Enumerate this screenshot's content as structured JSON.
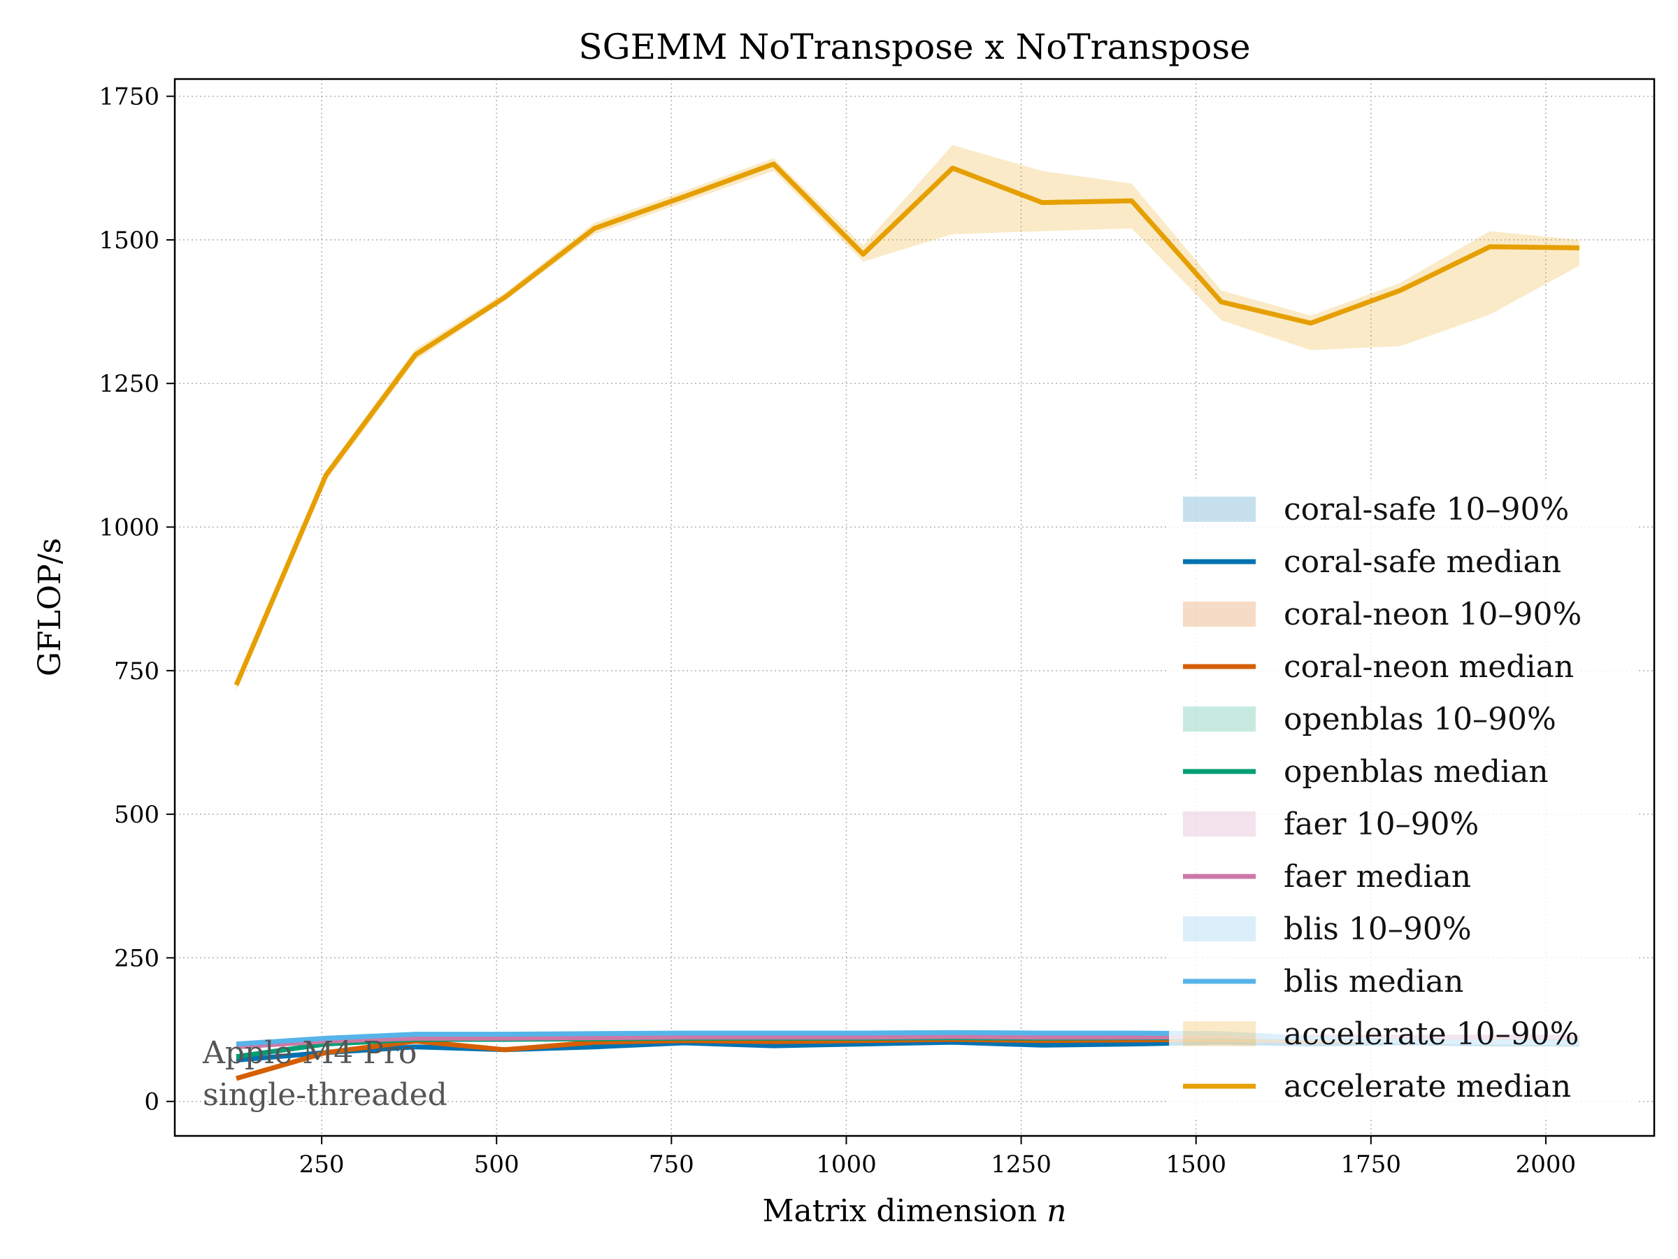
{
  "chart_data": {
    "type": "line",
    "title": "SGEMM  NoTranspose x NoTranspose",
    "xlabel": "Matrix dimension",
    "xlabel_var": "n",
    "ylabel": "GFLOP/s",
    "xlim": [
      40,
      2155
    ],
    "ylim": [
      -60,
      1780
    ],
    "xticks": [
      250,
      500,
      750,
      1000,
      1250,
      1500,
      1750,
      2000
    ],
    "yticks": [
      0,
      250,
      500,
      750,
      1000,
      1250,
      1500,
      1750
    ],
    "grid": true,
    "legend_position": "lower-right",
    "annotation": [
      "Apple M4 Pro",
      "single-threaded"
    ],
    "x": [
      128,
      256,
      384,
      512,
      640,
      768,
      896,
      1024,
      1152,
      1280,
      1408,
      1536,
      1664,
      1792,
      1920,
      2048
    ],
    "series": [
      {
        "name": "coral-safe",
        "color": "#0072B2",
        "band_label": "coral-safe 10–90%",
        "median_label": "coral-safe median",
        "median": [
          72,
          85,
          95,
          90,
          95,
          102,
          97,
          100,
          103,
          98,
          100,
          103,
          100,
          102,
          100,
          100
        ],
        "p10": [
          70,
          83,
          93,
          88,
          93,
          100,
          95,
          98,
          101,
          96,
          98,
          101,
          98,
          100,
          98,
          98
        ],
        "p90": [
          75,
          88,
          98,
          93,
          98,
          105,
          100,
          103,
          106,
          101,
          103,
          106,
          103,
          105,
          103,
          103
        ]
      },
      {
        "name": "coral-neon",
        "color": "#D55E00",
        "band_label": "coral-neon 10–90%",
        "median_label": "coral-neon median",
        "median": [
          40,
          85,
          105,
          90,
          103,
          106,
          104,
          106,
          108,
          106,
          107,
          108,
          106,
          107,
          106,
          106
        ],
        "p10": [
          38,
          83,
          103,
          88,
          101,
          104,
          102,
          104,
          106,
          104,
          105,
          106,
          104,
          105,
          104,
          104
        ],
        "p90": [
          43,
          88,
          108,
          93,
          106,
          109,
          107,
          109,
          111,
          109,
          110,
          111,
          109,
          110,
          109,
          109
        ]
      },
      {
        "name": "openblas",
        "color": "#009E73",
        "band_label": "openblas 10–90%",
        "median_label": "openblas median",
        "median": [
          78,
          100,
          108,
          108,
          109,
          110,
          110,
          110,
          111,
          110,
          111,
          111,
          110,
          110,
          110,
          110
        ],
        "p10": [
          76,
          98,
          106,
          106,
          107,
          108,
          108,
          108,
          109,
          108,
          109,
          109,
          108,
          108,
          108,
          108
        ],
        "p90": [
          81,
          103,
          111,
          111,
          112,
          113,
          113,
          113,
          114,
          113,
          114,
          114,
          113,
          113,
          113,
          113
        ]
      },
      {
        "name": "faer",
        "color": "#CC79A7",
        "band_label": "faer 10–90%",
        "median_label": "faer median",
        "median": [
          95,
          105,
          110,
          110,
          111,
          112,
          112,
          112,
          113,
          112,
          112,
          113,
          112,
          112,
          112,
          112
        ],
        "p10": [
          93,
          103,
          108,
          108,
          109,
          110,
          110,
          110,
          111,
          110,
          110,
          111,
          110,
          110,
          110,
          110
        ],
        "p90": [
          98,
          108,
          113,
          113,
          114,
          115,
          115,
          115,
          116,
          115,
          115,
          116,
          115,
          115,
          115,
          115
        ]
      },
      {
        "name": "blis",
        "color": "#56B4E9",
        "band_label": "blis 10–90%",
        "median_label": "blis median",
        "median": [
          100,
          110,
          117,
          117,
          118,
          119,
          119,
          119,
          120,
          119,
          119,
          118,
          110,
          105,
          103,
          102
        ],
        "p10": [
          98,
          108,
          115,
          115,
          116,
          117,
          117,
          117,
          118,
          117,
          117,
          116,
          108,
          103,
          101,
          100
        ],
        "p90": [
          103,
          113,
          120,
          120,
          121,
          122,
          122,
          122,
          123,
          122,
          122,
          121,
          113,
          108,
          106,
          105
        ]
      },
      {
        "name": "accelerate",
        "color": "#E69F00",
        "band_label": "accelerate 10–90%",
        "median_label": "accelerate median",
        "median": [
          725,
          1090,
          1300,
          1400,
          1520,
          1575,
          1632,
          1475,
          1625,
          1565,
          1568,
          1392,
          1355,
          1412,
          1488,
          1486
        ],
        "p10": [
          715,
          1080,
          1290,
          1395,
          1510,
          1565,
          1620,
          1462,
          1510,
          1515,
          1520,
          1360,
          1308,
          1315,
          1370,
          1455
        ],
        "p90": [
          732,
          1098,
          1310,
          1408,
          1530,
          1585,
          1642,
          1490,
          1665,
          1620,
          1598,
          1412,
          1368,
          1425,
          1515,
          1500
        ]
      }
    ]
  }
}
